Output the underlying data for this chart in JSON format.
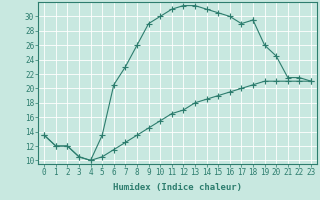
{
  "line1_x": [
    0,
    1,
    2,
    3,
    4,
    5,
    6,
    7,
    8,
    9,
    10,
    11,
    12,
    13,
    14,
    15,
    16,
    17,
    18
  ],
  "line1_y": [
    13.5,
    12,
    12,
    10.5,
    10,
    13.5,
    20.5,
    23,
    26,
    29,
    30,
    31,
    31.5,
    31.5,
    31,
    30.5,
    30,
    29,
    29.5
  ],
  "line2_x": [
    0,
    1,
    2,
    3,
    4,
    5,
    6,
    7,
    8,
    9,
    10,
    11,
    12,
    13,
    14,
    15,
    16,
    17,
    18,
    19,
    20,
    21,
    22,
    23
  ],
  "line2_y": [
    13.5,
    12,
    12,
    10.5,
    10,
    10.5,
    11.5,
    12.5,
    13.5,
    14.5,
    15.5,
    16.5,
    17,
    18,
    18.5,
    19,
    19.5,
    20,
    20.5,
    21,
    21,
    21,
    21,
    21
  ],
  "line3_x": [
    18,
    19,
    20,
    21,
    22,
    23
  ],
  "line3_y": [
    29.5,
    26,
    24.5,
    21.5,
    21.5,
    21
  ],
  "color": "#2d7d6e",
  "bgcolor": "#c8e8e0",
  "grid_color": "#ffffff",
  "xlabel": "Humidex (Indice chaleur)",
  "xlim": [
    -0.5,
    23.5
  ],
  "ylim": [
    9.5,
    32
  ],
  "xticks": [
    0,
    1,
    2,
    3,
    4,
    5,
    6,
    7,
    8,
    9,
    10,
    11,
    12,
    13,
    14,
    15,
    16,
    17,
    18,
    19,
    20,
    21,
    22,
    23
  ],
  "xtick_labels": [
    "0",
    "1",
    "2",
    "3",
    "4",
    "5",
    "6",
    "7",
    "8",
    "9",
    "10",
    "11",
    "12",
    "13",
    "14",
    "15",
    "16",
    "17",
    "18",
    "19",
    "20",
    "21",
    "22",
    "23"
  ],
  "yticks": [
    10,
    12,
    14,
    16,
    18,
    20,
    22,
    24,
    26,
    28,
    30
  ],
  "ytick_labels": [
    "10",
    "12",
    "14",
    "16",
    "18",
    "20",
    "22",
    "24",
    "26",
    "28",
    "30"
  ],
  "marker": "+",
  "linewidth": 0.8,
  "markersize": 4,
  "xlabel_fontsize": 6.5,
  "tick_fontsize": 5.5
}
